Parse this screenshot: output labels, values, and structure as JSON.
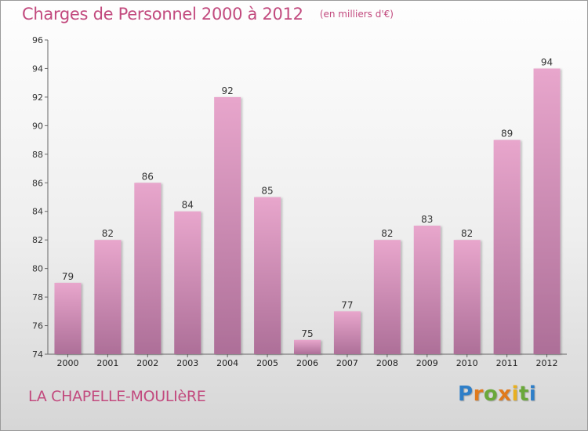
{
  "title": "Charges de Personnel 2000 à 2012",
  "subtitle": "(en milliers d'€)",
  "location": "LA CHAPELLE-MOULIèRE",
  "brand": "Proxiti",
  "colors": {
    "accent": "#c24a7e",
    "bar_top": "#e8a6cc",
    "bar_bottom": "#ad6f98"
  },
  "chart_data": {
    "type": "bar",
    "categories": [
      "2000",
      "2001",
      "2002",
      "2003",
      "2004",
      "2005",
      "2006",
      "2007",
      "2008",
      "2009",
      "2010",
      "2011",
      "2012"
    ],
    "values": [
      79,
      82,
      86,
      84,
      92,
      85,
      75,
      77,
      82,
      83,
      82,
      89,
      94
    ],
    "ylim": [
      74,
      96
    ],
    "yticks": [
      74,
      76,
      78,
      80,
      82,
      84,
      86,
      88,
      90,
      92,
      94,
      96
    ],
    "grid": false,
    "data_labels": true
  }
}
